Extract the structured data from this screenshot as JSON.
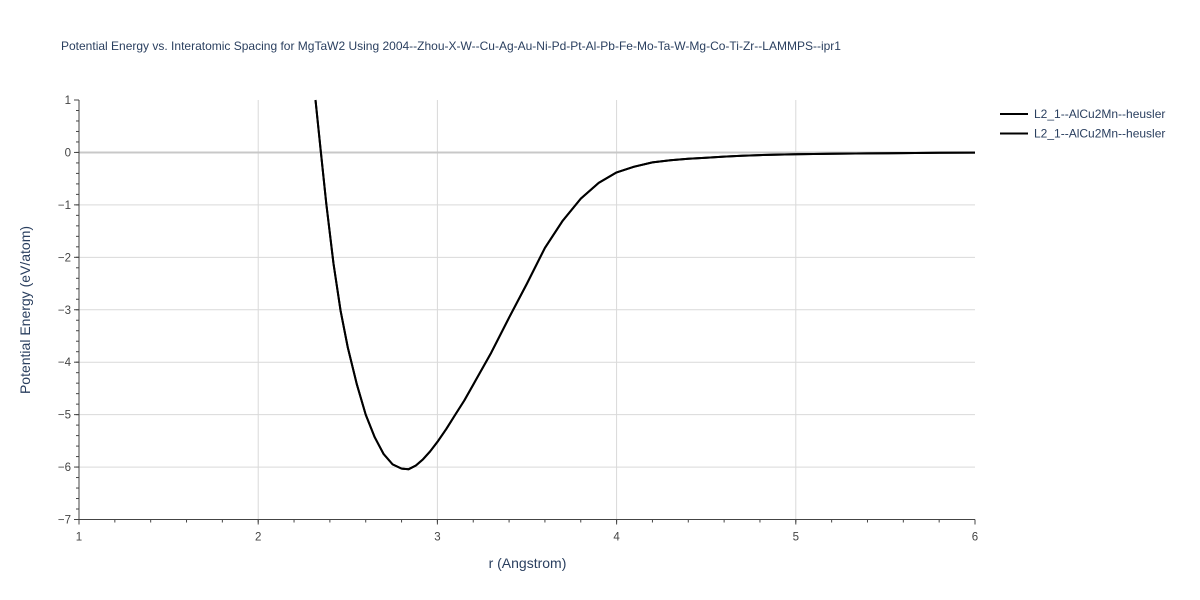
{
  "chart_data": {
    "type": "line",
    "title": "Potential Energy vs. Interatomic Spacing for MgTaW2 Using 2004--Zhou-X-W--Cu-Ag-Au-Ni-Pd-Pt-Al-Pb-Fe-Mo-Ta-W-Mg-Co-Ti-Zr--LAMMPS--ipr1",
    "xlabel": "r (Angstrom)",
    "ylabel": "Potential Energy (eV/atom)",
    "xlim": [
      1,
      6
    ],
    "ylim": [
      -7,
      1
    ],
    "x_ticks": [
      "1",
      "2",
      "3",
      "4",
      "5",
      "6"
    ],
    "y_ticks": [
      "1",
      "0",
      "−1",
      "−2",
      "−3",
      "−4",
      "−5",
      "−6",
      "−7"
    ],
    "grid": true,
    "legend_position": "top-right",
    "series": [
      {
        "name": "L2_1--AlCu2Mn--heusler",
        "color": "#000000",
        "x": [
          2.32,
          2.35,
          2.38,
          2.42,
          2.46,
          2.5,
          2.55,
          2.6,
          2.65,
          2.7,
          2.75,
          2.8,
          2.84,
          2.88,
          2.92,
          2.96,
          3.0,
          3.05,
          3.1,
          3.15,
          3.2,
          3.3,
          3.4,
          3.5,
          3.6,
          3.7,
          3.8,
          3.9,
          4.0,
          4.1,
          4.2,
          4.3,
          4.4,
          4.5,
          4.6,
          4.7,
          4.8,
          5.0,
          5.2,
          5.4,
          5.6,
          5.8,
          6.0
        ],
        "y": [
          1.0,
          0.0,
          -0.98,
          -2.12,
          -3.02,
          -3.72,
          -4.42,
          -5.0,
          -5.43,
          -5.75,
          -5.95,
          -6.03,
          -6.04,
          -5.97,
          -5.85,
          -5.7,
          -5.52,
          -5.27,
          -5.0,
          -4.73,
          -4.43,
          -3.82,
          -3.15,
          -2.5,
          -1.82,
          -1.3,
          -0.88,
          -0.58,
          -0.38,
          -0.27,
          -0.19,
          -0.15,
          -0.12,
          -0.1,
          -0.08,
          -0.065,
          -0.05,
          -0.035,
          -0.025,
          -0.018,
          -0.012,
          -0.007,
          -0.003
        ]
      },
      {
        "name": "L2_1--AlCu2Mn--heusler",
        "color": "#000000",
        "x": [
          2.32,
          2.35,
          2.38,
          2.42,
          2.46,
          2.5,
          2.55,
          2.6,
          2.65,
          2.7,
          2.75,
          2.8,
          2.84,
          2.88,
          2.92,
          2.96,
          3.0,
          3.05,
          3.1,
          3.15,
          3.2,
          3.3,
          3.4,
          3.5,
          3.6,
          3.7,
          3.8,
          3.9,
          4.0,
          4.1,
          4.2,
          4.3,
          4.4,
          4.5,
          4.6,
          4.7,
          4.8,
          5.0,
          5.2,
          5.4,
          5.6,
          5.8,
          6.0
        ],
        "y": [
          1.0,
          0.0,
          -0.98,
          -2.12,
          -3.02,
          -3.72,
          -4.42,
          -5.0,
          -5.43,
          -5.75,
          -5.95,
          -6.03,
          -6.04,
          -5.97,
          -5.85,
          -5.7,
          -5.52,
          -5.27,
          -5.0,
          -4.73,
          -4.43,
          -3.82,
          -3.15,
          -2.5,
          -1.82,
          -1.3,
          -0.88,
          -0.58,
          -0.38,
          -0.27,
          -0.19,
          -0.15,
          -0.12,
          -0.1,
          -0.08,
          -0.065,
          -0.05,
          -0.035,
          -0.025,
          -0.018,
          -0.012,
          -0.007,
          -0.003
        ]
      }
    ]
  }
}
